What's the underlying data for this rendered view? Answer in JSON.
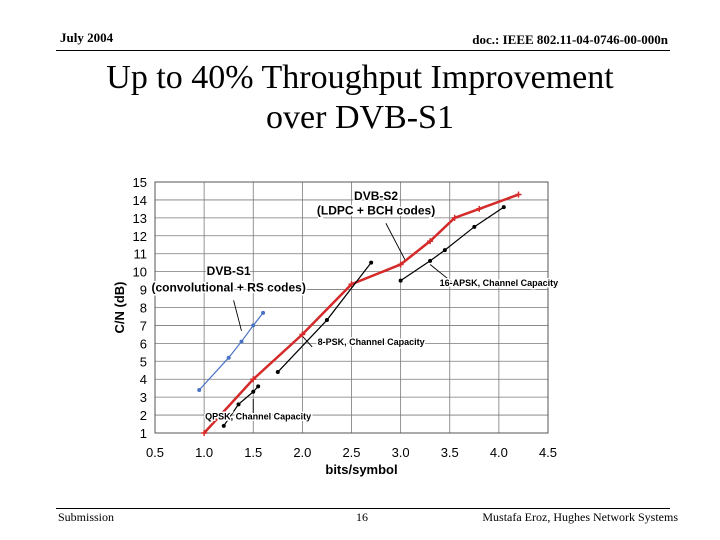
{
  "header": {
    "date": "July 2004",
    "doc": "doc.: IEEE 802.11-04-0746-00-000n"
  },
  "title": {
    "line1": "Up to 40% Throughput Improvement",
    "line2": "over DVB-S1"
  },
  "footer": {
    "left": "Submission",
    "page": "16",
    "author": "Mustafa Eroz, Hughes Network Systems"
  },
  "colors": {
    "dvbs2": "#d42a2a",
    "dvbs1": "#4a72c4",
    "capacity": "#000000",
    "grid": "#7a7a7a"
  },
  "chart_data": {
    "type": "line",
    "xlabel": "bits/symbol",
    "ylabel": "C/N (dB)",
    "xlim": [
      0.5,
      4.5
    ],
    "ylim": [
      1,
      15
    ],
    "xticks": [
      0.5,
      1.0,
      1.5,
      2.0,
      2.5,
      3.0,
      3.5,
      4.0,
      4.5
    ],
    "xtick_labels": [
      "0.5",
      "1.0",
      "1.5",
      "2.0",
      "2.5",
      "3.0",
      "3.5",
      "4.0",
      "4.5"
    ],
    "yticks": [
      1,
      2,
      3,
      4,
      5,
      6,
      7,
      8,
      9,
      10,
      11,
      12,
      13,
      14,
      15
    ],
    "ytick_labels": [
      "1",
      "2",
      "3",
      "4",
      "5",
      "6",
      "7",
      "8",
      "9",
      "10",
      "11",
      "12",
      "13",
      "14",
      "15"
    ],
    "grid": true,
    "series": [
      {
        "name": "DVB-S2 (LDPC + BCH codes)",
        "color": "#d42a2a",
        "marker": "plus",
        "x": [
          1.0,
          1.5,
          2.0,
          2.5,
          3.0,
          3.3,
          3.55,
          3.8,
          4.2
        ],
        "y": [
          1.0,
          4.0,
          6.5,
          9.3,
          10.4,
          11.7,
          13.0,
          13.5,
          14.3
        ]
      },
      {
        "name": "DVB-S1 (convolutional + RS codes)",
        "color": "#4a72c4",
        "marker": "dot",
        "x": [
          0.95,
          1.25,
          1.38,
          1.5,
          1.6
        ],
        "y": [
          3.4,
          5.2,
          6.1,
          7.0,
          7.7
        ]
      },
      {
        "name": "QPSK, Channel Capacity",
        "color": "#000000",
        "marker": "dot",
        "x": [
          1.2,
          1.35,
          1.5,
          1.55
        ],
        "y": [
          1.4,
          2.6,
          3.3,
          3.6
        ]
      },
      {
        "name": "8-PSK, Channel Capacity",
        "color": "#000000",
        "marker": "dot",
        "x": [
          1.75,
          2.25,
          2.7
        ],
        "y": [
          4.4,
          7.3,
          10.5
        ]
      },
      {
        "name": "16-APSK, Channel Capacity",
        "color": "#000000",
        "marker": "dot",
        "x": [
          3.0,
          3.3,
          3.45,
          3.75,
          4.05
        ],
        "y": [
          9.5,
          10.6,
          11.2,
          12.5,
          13.6
        ]
      }
    ],
    "annotations": [
      {
        "text": "DVB-S2",
        "x": 2.75,
        "y": 14.0
      },
      {
        "text": "(LDPC + BCH codes)",
        "x": 2.75,
        "y": 13.2
      },
      {
        "text": "DVB-S1",
        "x": 1.25,
        "y": 9.8
      },
      {
        "text": "(convolutional + RS codes)",
        "x": 1.25,
        "y": 8.9
      },
      {
        "text": "16-APSK, Channel Capacity",
        "x": 4.0,
        "y": 9.2
      },
      {
        "text": "8-PSK, Channel Capacity",
        "x": 2.7,
        "y": 5.9
      },
      {
        "text": "QPSK, Channel Capacity",
        "x": 1.55,
        "y": 1.75
      }
    ],
    "pointers": [
      {
        "from": [
          2.85,
          12.7
        ],
        "to": [
          3.05,
          10.6
        ]
      },
      {
        "from": [
          1.3,
          8.4
        ],
        "to": [
          1.38,
          6.7
        ]
      },
      {
        "from": [
          3.55,
          9.3
        ],
        "to": [
          3.3,
          10.4
        ]
      },
      {
        "from": [
          2.1,
          5.8
        ],
        "to": [
          2.0,
          6.4
        ]
      },
      {
        "from": [
          1.5,
          1.75
        ],
        "to": [
          1.5,
          2.9
        ]
      }
    ]
  }
}
